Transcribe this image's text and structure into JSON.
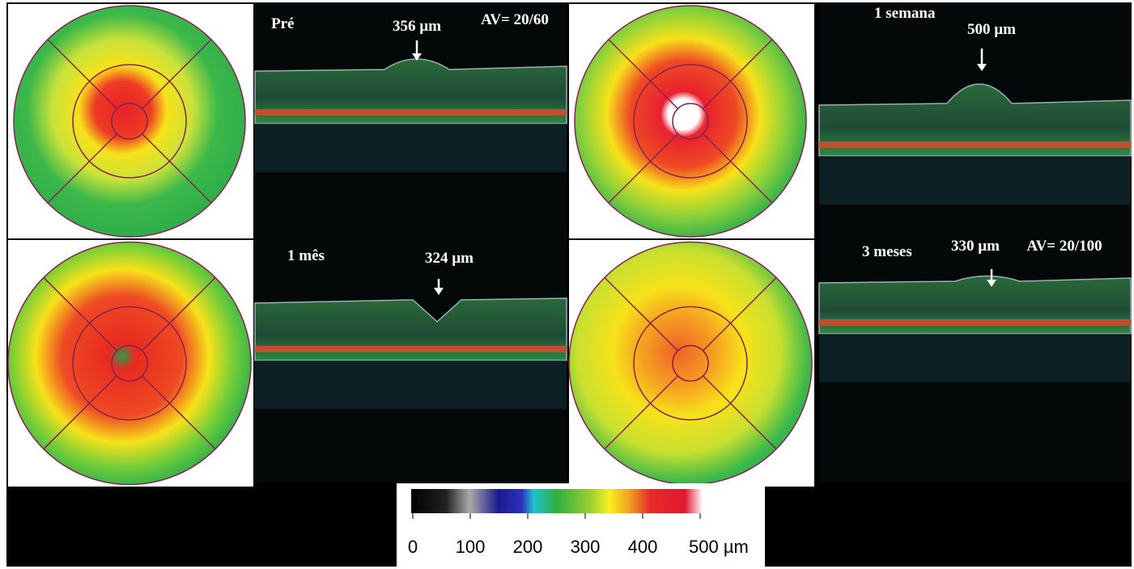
{
  "panels": [
    {
      "label": "Pré",
      "thickness": "356 µm",
      "acuity": "AV= 20/60"
    },
    {
      "label": "1 semana",
      "thickness": "500 µm"
    },
    {
      "label": "1 mês",
      "thickness": "324 µm"
    },
    {
      "label": "3 meses",
      "thickness": "330 µm",
      "acuity": "AV= 20/100"
    }
  ],
  "colorbar": {
    "ticks": [
      0,
      100,
      200,
      300,
      400,
      {
        "value": 500,
        "label": "500 µm"
      }
    ]
  }
}
